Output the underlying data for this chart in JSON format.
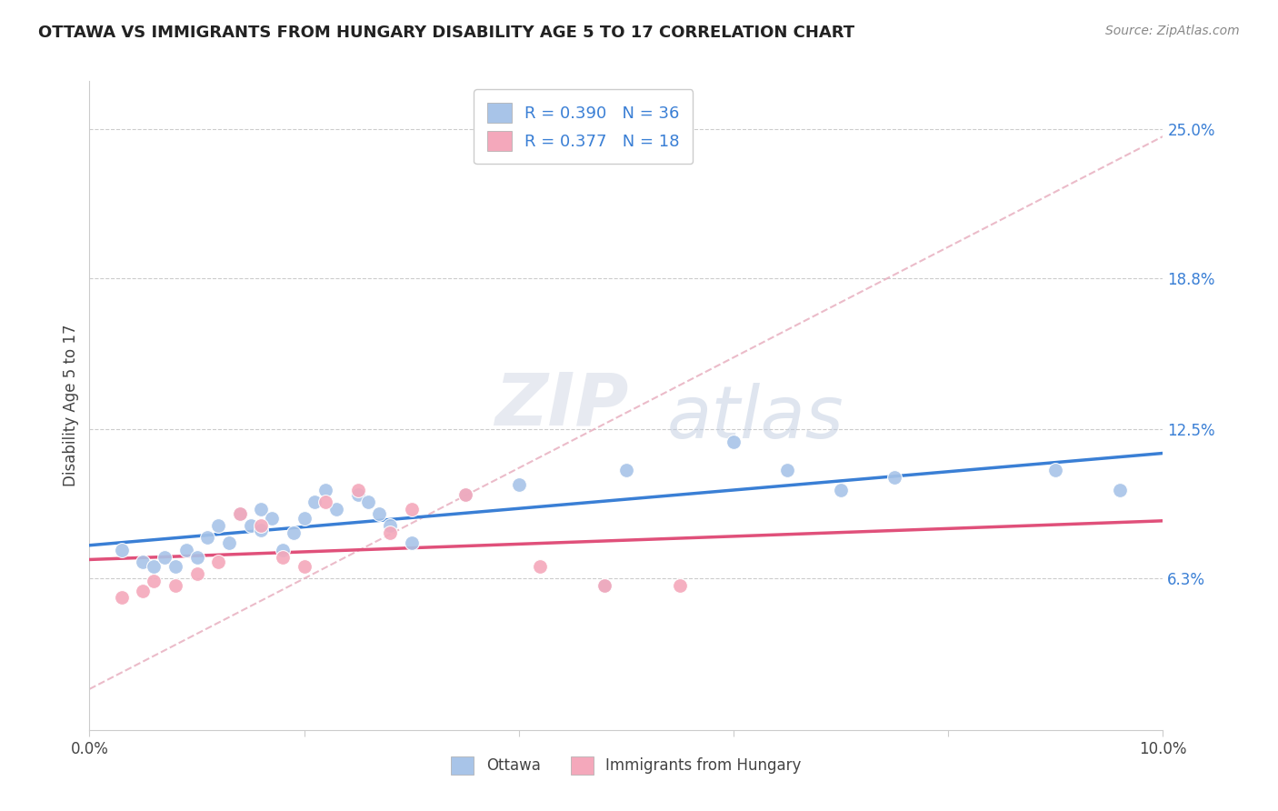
{
  "title": "OTTAWA VS IMMIGRANTS FROM HUNGARY DISABILITY AGE 5 TO 17 CORRELATION CHART",
  "source": "Source: ZipAtlas.com",
  "ylabel": "Disability Age 5 to 17",
  "xlim": [
    0.0,
    0.1
  ],
  "ylim": [
    0.0,
    0.27
  ],
  "ytick_positions": [
    0.063,
    0.125,
    0.188,
    0.25
  ],
  "ytick_labels": [
    "6.3%",
    "12.5%",
    "18.8%",
    "25.0%"
  ],
  "ottawa_R": 0.39,
  "ottawa_N": 36,
  "hungary_R": 0.377,
  "hungary_N": 18,
  "ottawa_color": "#a8c4e8",
  "hungary_color": "#f4a8bb",
  "trendline_blue": "#3a7fd5",
  "trendline_pink": "#e0507a",
  "trendline_dashed_color": "#e8b0c0",
  "watermark_zip": "ZIP",
  "watermark_atlas": "atlas",
  "ottawa_x": [
    0.003,
    0.005,
    0.006,
    0.007,
    0.008,
    0.009,
    0.01,
    0.011,
    0.012,
    0.013,
    0.014,
    0.015,
    0.016,
    0.016,
    0.017,
    0.018,
    0.019,
    0.02,
    0.021,
    0.022,
    0.023,
    0.025,
    0.026,
    0.027,
    0.028,
    0.03,
    0.035,
    0.04,
    0.048,
    0.05,
    0.06,
    0.065,
    0.07,
    0.075,
    0.09,
    0.096
  ],
  "ottawa_y": [
    0.075,
    0.07,
    0.068,
    0.072,
    0.068,
    0.075,
    0.072,
    0.08,
    0.085,
    0.078,
    0.09,
    0.085,
    0.092,
    0.083,
    0.088,
    0.075,
    0.082,
    0.088,
    0.095,
    0.1,
    0.092,
    0.098,
    0.095,
    0.09,
    0.085,
    0.078,
    0.098,
    0.102,
    0.06,
    0.108,
    0.12,
    0.108,
    0.1,
    0.105,
    0.108,
    0.1
  ],
  "hungary_x": [
    0.003,
    0.005,
    0.006,
    0.008,
    0.01,
    0.012,
    0.014,
    0.016,
    0.018,
    0.02,
    0.022,
    0.025,
    0.028,
    0.03,
    0.035,
    0.042,
    0.048,
    0.055
  ],
  "hungary_y": [
    0.055,
    0.058,
    0.062,
    0.06,
    0.065,
    0.07,
    0.09,
    0.085,
    0.072,
    0.068,
    0.095,
    0.1,
    0.082,
    0.092,
    0.098,
    0.068,
    0.06,
    0.06
  ]
}
